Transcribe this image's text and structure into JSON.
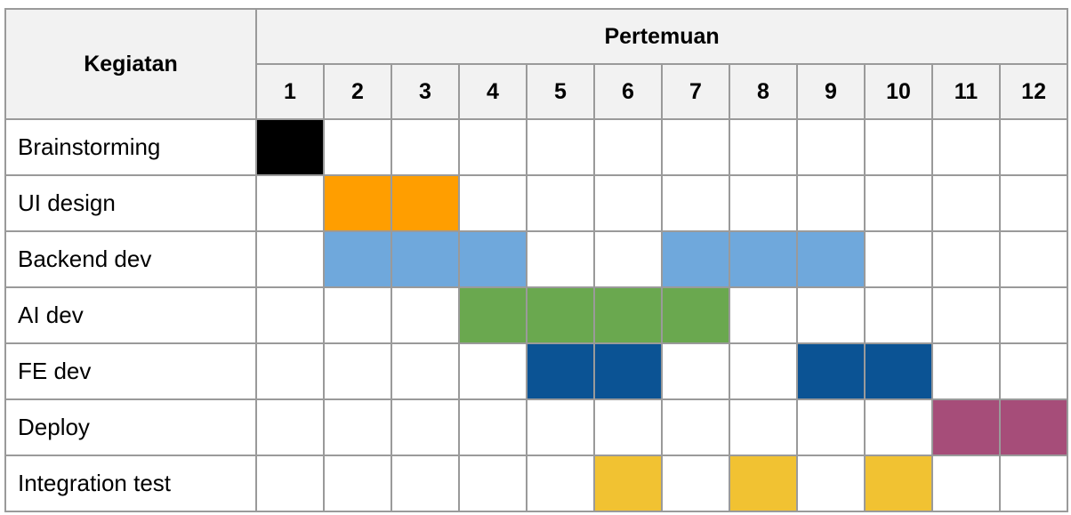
{
  "header": {
    "activity_label": "Kegiatan",
    "meeting_label": "Pertemuan",
    "meetings": [
      "1",
      "2",
      "3",
      "4",
      "5",
      "6",
      "7",
      "8",
      "9",
      "10",
      "11",
      "12"
    ]
  },
  "rows": [
    {
      "task": "Brainstorming",
      "active": [
        1
      ],
      "color": "#000000"
    },
    {
      "task": "UI design",
      "active": [
        2,
        3
      ],
      "color": "#ff9e00"
    },
    {
      "task": "Backend dev",
      "active": [
        2,
        3,
        4,
        7,
        8,
        9
      ],
      "color": "#6fa8dc"
    },
    {
      "task": "AI dev",
      "active": [
        4,
        5,
        6,
        7
      ],
      "color": "#6aa84f"
    },
    {
      "task": "FE dev",
      "active": [
        5,
        6,
        9,
        10
      ],
      "color": "#0b5394"
    },
    {
      "task": "Deploy",
      "active": [
        11,
        12
      ],
      "color": "#a64d79"
    },
    {
      "task": "Integration test",
      "active": [
        6,
        8,
        10
      ],
      "color": "#f1c232"
    }
  ]
}
